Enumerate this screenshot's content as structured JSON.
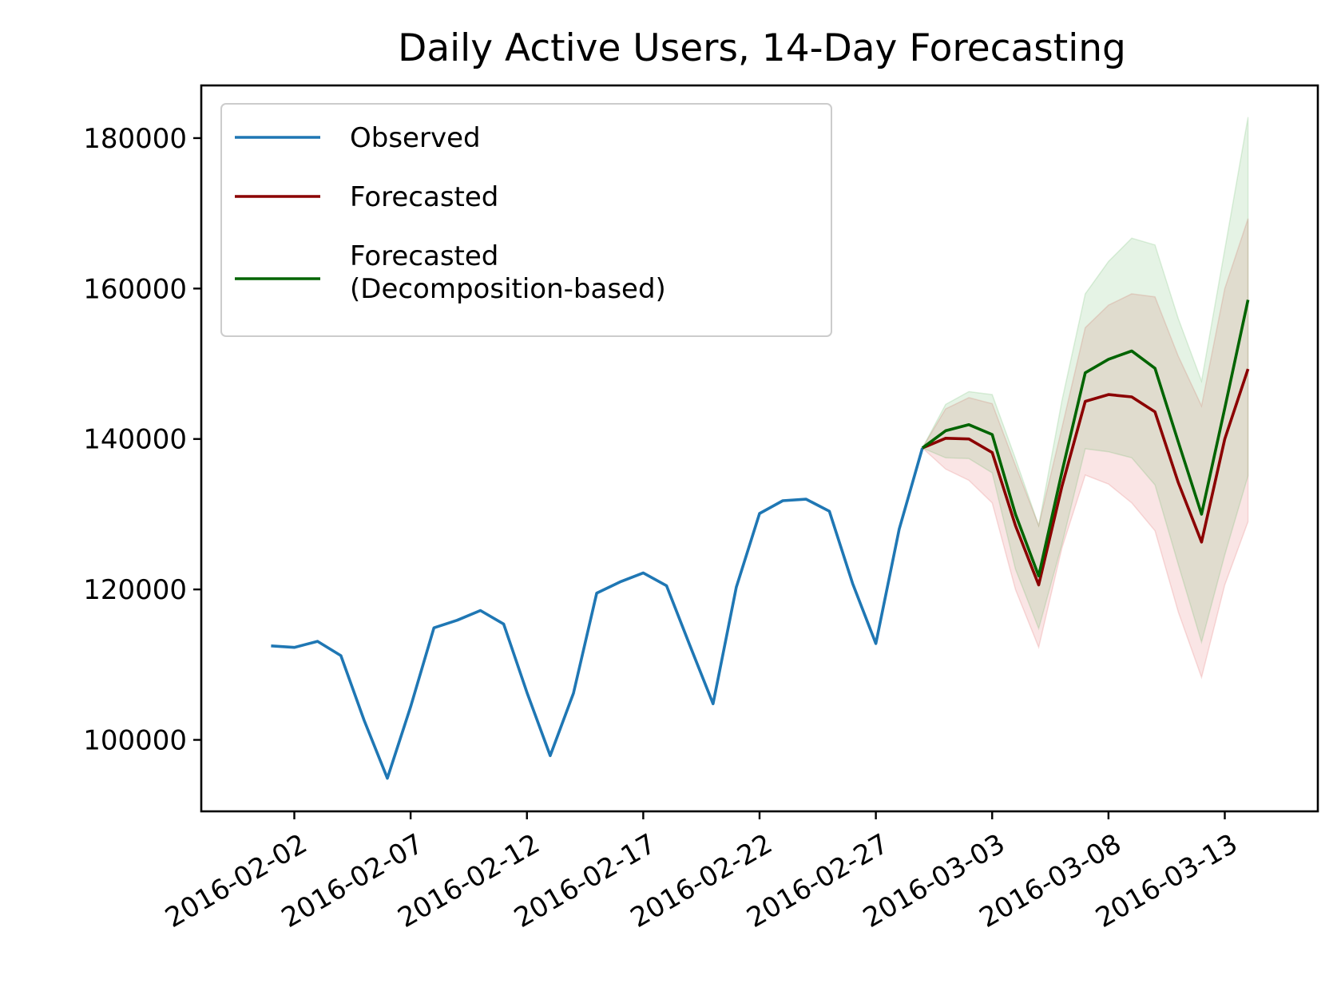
{
  "chart_data": {
    "type": "line",
    "title": "Daily Active Users, 14-Day Forecasting",
    "xlabel": "",
    "ylabel": "",
    "x_type": "date",
    "xlim": [
      "2016-01-29",
      "2016-03-17"
    ],
    "ylim": [
      90500,
      187000
    ],
    "x_ticks": [
      "2016-02-02",
      "2016-02-07",
      "2016-02-12",
      "2016-02-17",
      "2016-02-22",
      "2016-02-27",
      "2016-03-03",
      "2016-03-08",
      "2016-03-13"
    ],
    "y_ticks": [
      100000,
      120000,
      140000,
      160000,
      180000
    ],
    "grid": false,
    "legend_position": "top-left",
    "series": [
      {
        "name": "Observed",
        "color": "#1f77b4",
        "x": [
          "2016-02-01",
          "2016-02-02",
          "2016-02-03",
          "2016-02-04",
          "2016-02-05",
          "2016-02-06",
          "2016-02-07",
          "2016-02-08",
          "2016-02-09",
          "2016-02-10",
          "2016-02-11",
          "2016-02-12",
          "2016-02-13",
          "2016-02-14",
          "2016-02-15",
          "2016-02-16",
          "2016-02-17",
          "2016-02-18",
          "2016-02-19",
          "2016-02-20",
          "2016-02-21",
          "2016-02-22",
          "2016-02-23",
          "2016-02-24",
          "2016-02-25",
          "2016-02-26",
          "2016-02-27",
          "2016-02-28",
          "2016-02-29"
        ],
        "y": [
          112500,
          112300,
          113100,
          111200,
          102600,
          94900,
          104400,
          114900,
          115900,
          117200,
          115400,
          106300,
          97900,
          106200,
          119500,
          121000,
          122200,
          120500,
          112600,
          104800,
          120300,
          130100,
          131800,
          132000,
          130400,
          120800,
          112800,
          128000,
          138800
        ]
      },
      {
        "name": "Forecasted",
        "color": "#8b0000",
        "band_color": "#d62728",
        "x": [
          "2016-02-29",
          "2016-03-01",
          "2016-03-02",
          "2016-03-03",
          "2016-03-04",
          "2016-03-05",
          "2016-03-06",
          "2016-03-07",
          "2016-03-08",
          "2016-03-09",
          "2016-03-10",
          "2016-03-11",
          "2016-03-12",
          "2016-03-13",
          "2016-03-14"
        ],
        "y": [
          138800,
          140100,
          140000,
          138200,
          128500,
          120600,
          133700,
          145000,
          145900,
          145600,
          143600,
          134200,
          126300,
          140000,
          149300
        ],
        "lower": [
          138800,
          136000,
          134500,
          131500,
          120000,
          112300,
          125500,
          135200,
          134000,
          131500,
          127800,
          117000,
          108300,
          120600,
          129000
        ],
        "upper": [
          138800,
          144000,
          145500,
          144700,
          136500,
          128500,
          141500,
          154800,
          157800,
          159300,
          158900,
          151000,
          144400,
          160000,
          169300
        ]
      },
      {
        "name": "Forecasted\n(Decomposition-based)",
        "color": "#006400",
        "band_color": "#2ca02c",
        "x": [
          "2016-02-29",
          "2016-03-01",
          "2016-03-02",
          "2016-03-03",
          "2016-03-04",
          "2016-03-05",
          "2016-03-06",
          "2016-03-07",
          "2016-03-08",
          "2016-03-09",
          "2016-03-10",
          "2016-03-11",
          "2016-03-12",
          "2016-03-13",
          "2016-03-14"
        ],
        "y": [
          138800,
          141100,
          141900,
          140600,
          130000,
          121800,
          135600,
          148800,
          150600,
          151700,
          149400,
          139600,
          130000,
          144100,
          158500
        ],
        "lower": [
          138800,
          137500,
          137400,
          135500,
          122700,
          114800,
          126000,
          138700,
          138300,
          137500,
          133900,
          123300,
          113000,
          124600,
          135100
        ],
        "upper": [
          138800,
          144600,
          146300,
          145900,
          137400,
          128500,
          145100,
          159300,
          163600,
          166700,
          165800,
          156000,
          147700,
          165200,
          182800
        ]
      }
    ]
  }
}
